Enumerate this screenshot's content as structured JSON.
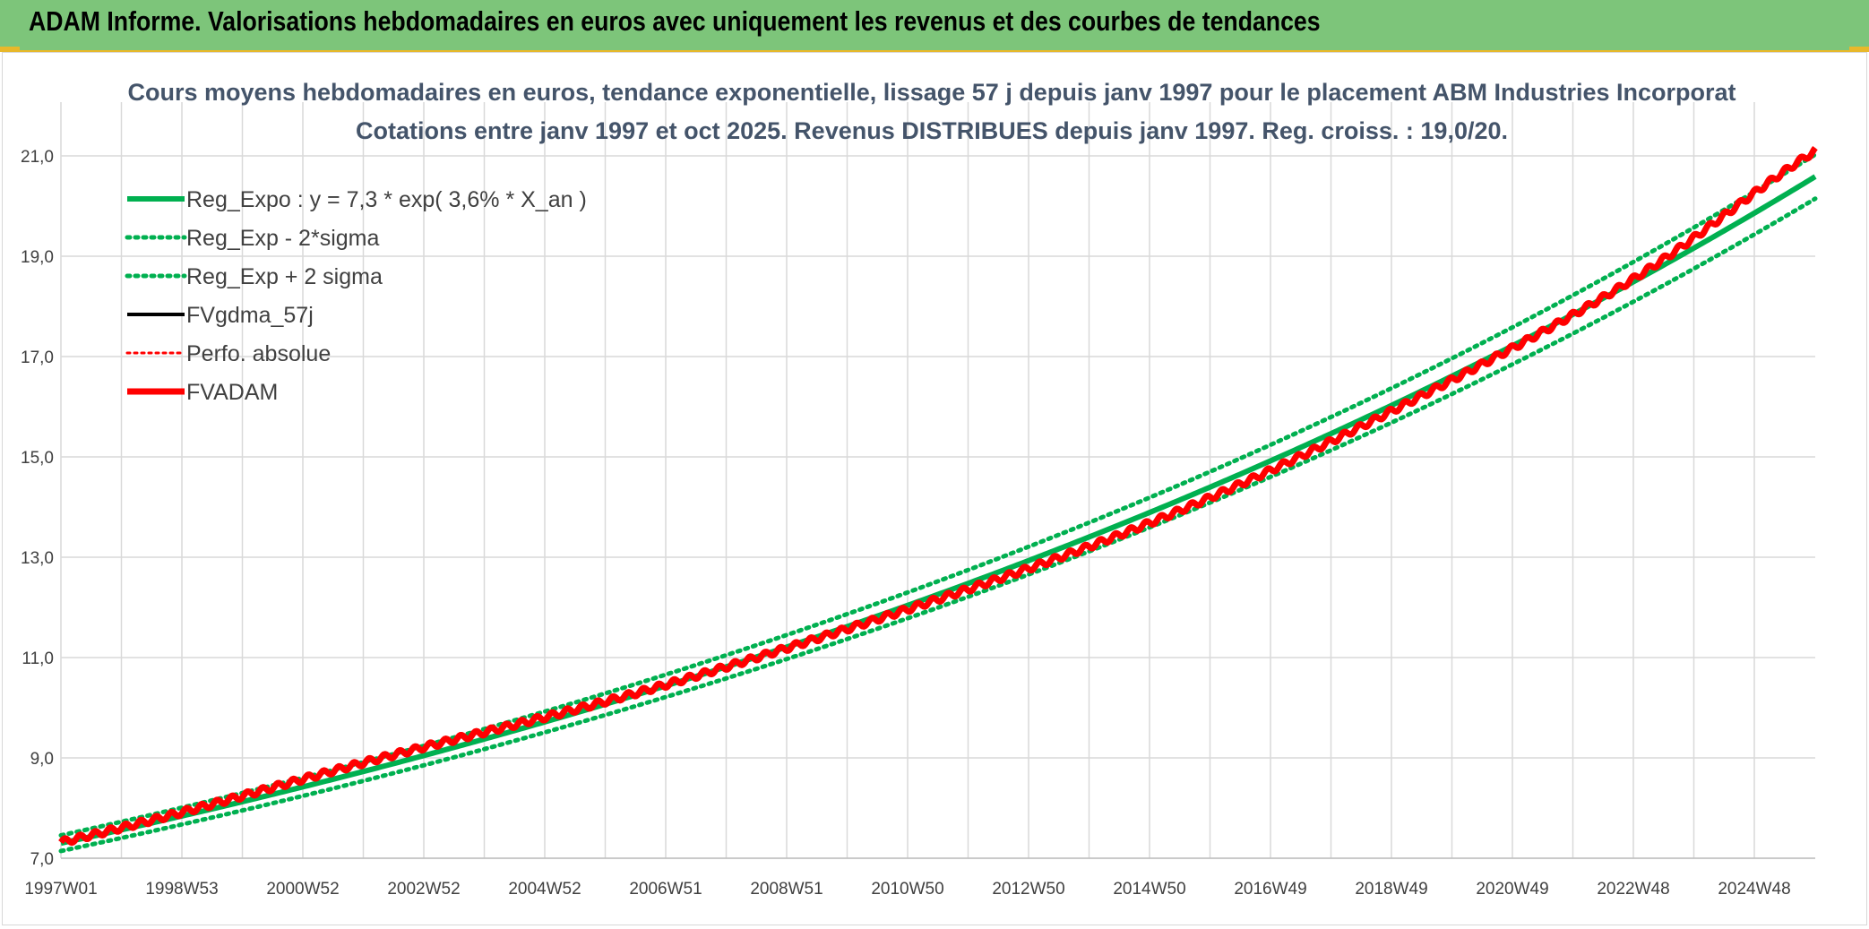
{
  "header": {
    "title": "ADAM Informe. Valorisations hebdomadaires en euros avec uniquement les revenus et des courbes de tendances"
  },
  "colors": {
    "header_bg": "#7dc57a",
    "accent": "#e8b82a",
    "reg_expo": "#00b050",
    "reg_sigma": "#00b050",
    "fvgdma": "#000000",
    "perfo": "#ff0000",
    "fvadam": "#ff0000"
  },
  "chart_data": {
    "type": "line",
    "title_line1": "Cours moyens hebdomadaires en euros, tendance exponentielle, lissage 57 j depuis janv 1997 pour le placement ABM Industries Incorporat",
    "title_line2": "Cotations entre janv 1997 et oct 2025. Revenus DISTRIBUES depuis janv 1997. Reg. croiss. : 19,0/20.",
    "xlabel": "",
    "ylabel": "",
    "x_tick_labels": [
      "1997W01",
      "1998W53",
      "2000W52",
      "2002W52",
      "2004W52",
      "2006W51",
      "2008W51",
      "2010W50",
      "2012W50",
      "2014W50",
      "2016W49",
      "2018W49",
      "2020W49",
      "2022W48",
      "2024W48"
    ],
    "x_range_years": [
      1997.0,
      2025.8
    ],
    "y_ticks": [
      "7,0",
      "9,0",
      "11,0",
      "13,0",
      "15,0",
      "17,0",
      "19,0",
      "21,0"
    ],
    "ylim": [
      7.0,
      21.0
    ],
    "grid": true,
    "legend_position": "top-left",
    "regression": {
      "a": 7.3,
      "rate": 0.036,
      "sigma_factor": 0.0214
    },
    "series": [
      {
        "name": "Reg_Expo : y = 7,3 * exp( 3,6% *  X_an )",
        "style": "solid-thick",
        "color": "#00b050",
        "values": [
          {
            "x": 1997.0,
            "y": 7.3
          },
          {
            "x": 2000.0,
            "y": 8.15
          },
          {
            "x": 2005.0,
            "y": 9.75
          },
          {
            "x": 2010.0,
            "y": 11.68
          },
          {
            "x": 2015.0,
            "y": 13.97
          },
          {
            "x": 2020.0,
            "y": 16.73
          },
          {
            "x": 2025.8,
            "y": 20.75
          }
        ]
      },
      {
        "name": "Reg_Exp - 2*sigma",
        "style": "dotted",
        "color": "#00b050",
        "values": [
          {
            "x": 1997.0,
            "y": 7.15
          },
          {
            "x": 2005.0,
            "y": 9.54
          },
          {
            "x": 2010.0,
            "y": 11.43
          },
          {
            "x": 2015.0,
            "y": 13.67
          },
          {
            "x": 2020.0,
            "y": 16.37
          },
          {
            "x": 2025.8,
            "y": 20.31
          }
        ]
      },
      {
        "name": "Reg_Exp + 2 sigma",
        "style": "dotted",
        "color": "#00b050",
        "values": [
          {
            "x": 1997.0,
            "y": 7.46
          },
          {
            "x": 2005.0,
            "y": 9.96
          },
          {
            "x": 2010.0,
            "y": 11.93
          },
          {
            "x": 2015.0,
            "y": 14.27
          },
          {
            "x": 2020.0,
            "y": 17.09
          },
          {
            "x": 2025.8,
            "y": 21.2
          }
        ]
      },
      {
        "name": "FVgdma_57j",
        "style": "solid",
        "color": "#000000",
        "values": [
          {
            "x": 1997.0,
            "y": 7.45
          },
          {
            "x": 2002.0,
            "y": 8.95
          },
          {
            "x": 2006.0,
            "y": 10.4
          },
          {
            "x": 2010.0,
            "y": 11.95
          },
          {
            "x": 2014.0,
            "y": 13.6
          },
          {
            "x": 2018.0,
            "y": 15.9
          },
          {
            "x": 2022.0,
            "y": 18.6
          },
          {
            "x": 2025.8,
            "y": 21.3
          }
        ]
      },
      {
        "name": "Perfo. absolue",
        "style": "dotted",
        "color": "#ff0000",
        "values": [
          {
            "x": 1997.0,
            "y": 7.45
          },
          {
            "x": 2002.0,
            "y": 8.95
          },
          {
            "x": 2006.0,
            "y": 10.4
          },
          {
            "x": 2010.0,
            "y": 11.95
          },
          {
            "x": 2014.0,
            "y": 13.6
          },
          {
            "x": 2018.0,
            "y": 15.9
          },
          {
            "x": 2022.0,
            "y": 18.6
          },
          {
            "x": 2025.8,
            "y": 21.3
          }
        ]
      },
      {
        "name": "FVADAM",
        "style": "solid-thick",
        "color": "#ff0000",
        "values": [
          {
            "x": 1997.0,
            "y": 7.45
          },
          {
            "x": 2002.0,
            "y": 8.95
          },
          {
            "x": 2006.0,
            "y": 10.4
          },
          {
            "x": 2010.0,
            "y": 11.95
          },
          {
            "x": 2014.0,
            "y": 13.6
          },
          {
            "x": 2018.0,
            "y": 15.9
          },
          {
            "x": 2022.0,
            "y": 18.6
          },
          {
            "x": 2025.8,
            "y": 21.3
          }
        ]
      }
    ]
  }
}
